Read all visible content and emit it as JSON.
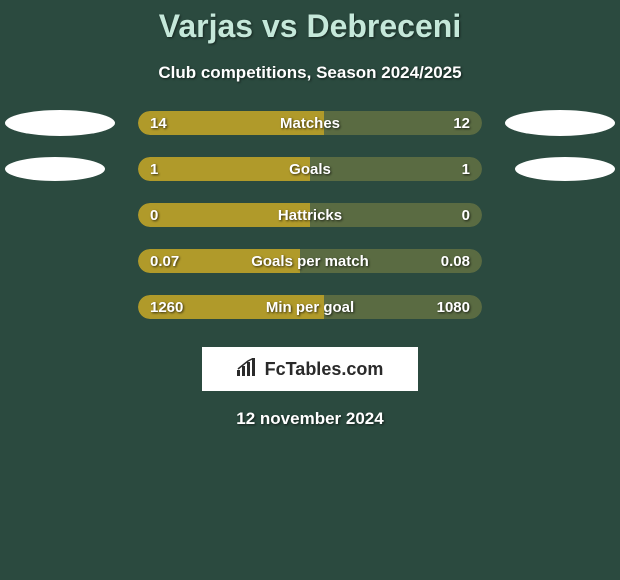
{
  "title": "Varjas vs Debreceni",
  "subtitle": "Club competitions, Season 2024/2025",
  "background_color": "#2b4a3f",
  "title_color": "#c5e8da",
  "text_color": "#ffffff",
  "left_fill_color": "#b09a2a",
  "right_fill_color": "#5a6b42",
  "ellipse_color": "#ffffff",
  "logo_bg_color": "#ffffff",
  "logo_text": "FcTables.com",
  "date": "12 november 2024",
  "rows": [
    {
      "label": "Matches",
      "left_val": "14",
      "right_val": "12",
      "left_pct": 54,
      "right_pct": 46,
      "show_left_ellipse": true,
      "show_right_ellipse": true,
      "ellipse_size": "large"
    },
    {
      "label": "Goals",
      "left_val": "1",
      "right_val": "1",
      "left_pct": 50,
      "right_pct": 50,
      "show_left_ellipse": true,
      "show_right_ellipse": true,
      "ellipse_size": "medium"
    },
    {
      "label": "Hattricks",
      "left_val": "0",
      "right_val": "0",
      "left_pct": 50,
      "right_pct": 50,
      "show_left_ellipse": false,
      "show_right_ellipse": false
    },
    {
      "label": "Goals per match",
      "left_val": "0.07",
      "right_val": "0.08",
      "left_pct": 47,
      "right_pct": 53,
      "show_left_ellipse": false,
      "show_right_ellipse": false
    },
    {
      "label": "Min per goal",
      "left_val": "1260",
      "right_val": "1080",
      "left_pct": 54,
      "right_pct": 46,
      "show_left_ellipse": false,
      "show_right_ellipse": false
    }
  ]
}
